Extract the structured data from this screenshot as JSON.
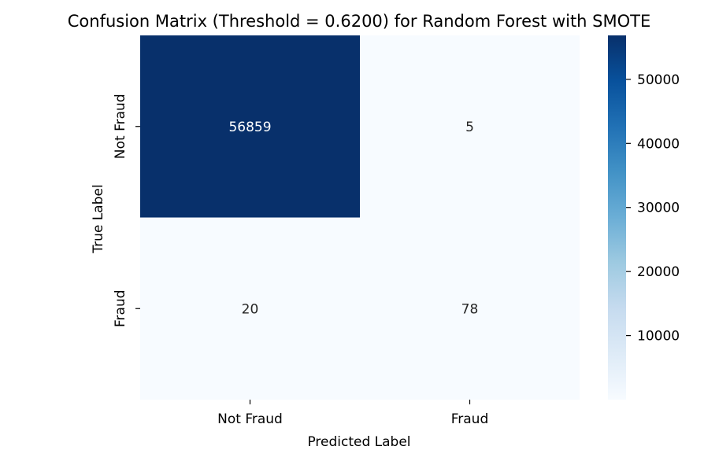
{
  "chart_data": {
    "type": "heatmap",
    "title": "Confusion Matrix (Threshold = 0.6200) for Random Forest with SMOTE",
    "xlabel": "Predicted Label",
    "ylabel": "True Label",
    "x_categories": [
      "Not Fraud",
      "Fraud"
    ],
    "y_categories": [
      "Not Fraud",
      "Fraud"
    ],
    "values": [
      [
        56859,
        5
      ],
      [
        20,
        78
      ]
    ],
    "cell_labels": [
      [
        "56859",
        "5"
      ],
      [
        "20",
        "78"
      ]
    ],
    "colormap": "Blues",
    "colors": {
      "low": "#f7fbff",
      "high": "#08306b"
    },
    "colorbar": {
      "min": 5,
      "max": 56859,
      "ticks": [
        10000,
        20000,
        30000,
        40000,
        50000
      ],
      "tick_labels": [
        "10000",
        "20000",
        "30000",
        "40000",
        "50000"
      ]
    }
  }
}
